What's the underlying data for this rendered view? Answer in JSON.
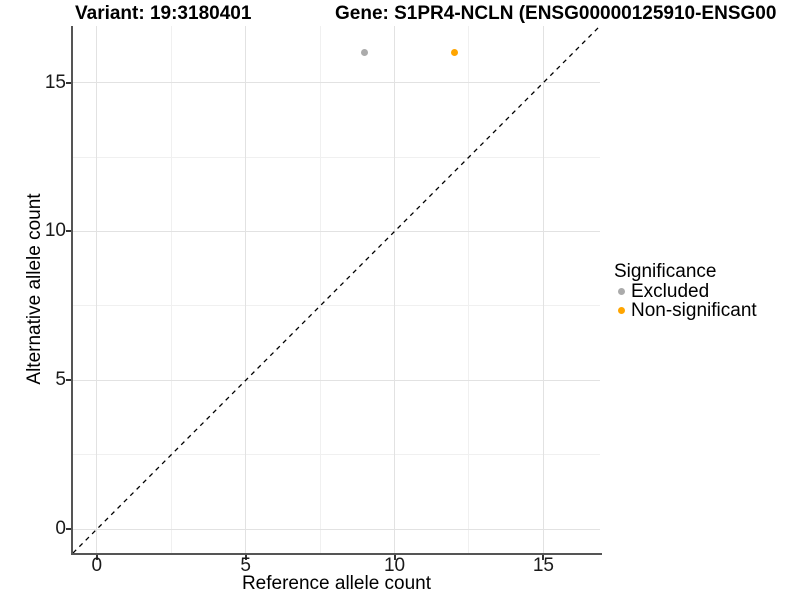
{
  "chart_data": {
    "type": "scatter",
    "title": {
      "variant": "Variant: 19:3180401",
      "gene": "Gene: S1PR4-NCLN (ENSG00000125910-ENSG00"
    },
    "xlabel": "Reference allele count",
    "ylabel": "Alternative allele count",
    "xlim": [
      -0.8,
      16.9
    ],
    "ylim": [
      -0.8,
      16.9
    ],
    "x_major_ticks": [
      0,
      5,
      10,
      15
    ],
    "y_major_ticks": [
      0,
      5,
      10,
      15
    ],
    "x_minor_gridlines": [
      2.5,
      7.5,
      12.5
    ],
    "y_minor_gridlines": [
      2.5,
      7.5,
      12.5
    ],
    "grid": "major+minor",
    "reference_line": {
      "equation": "y = x",
      "style": "dashed",
      "color": "#000000"
    },
    "series": [
      {
        "name": "Excluded",
        "color": "#ABABAB",
        "points": [
          {
            "x": 9,
            "y": 16
          }
        ]
      },
      {
        "name": "Non-significant",
        "color": "#FFA500",
        "points": [
          {
            "x": 12,
            "y": 16
          }
        ]
      }
    ],
    "legend": {
      "title": "Significance",
      "position": "right",
      "entries": [
        {
          "label": "Excluded",
          "color": "#ABABAB"
        },
        {
          "label": "Non-significant",
          "color": "#FFA500"
        }
      ]
    },
    "colors": {
      "axis_line": "#555555",
      "grid_major": "#e2e2e2",
      "grid_minor": "#f0f0f0",
      "text": "#000000"
    }
  }
}
